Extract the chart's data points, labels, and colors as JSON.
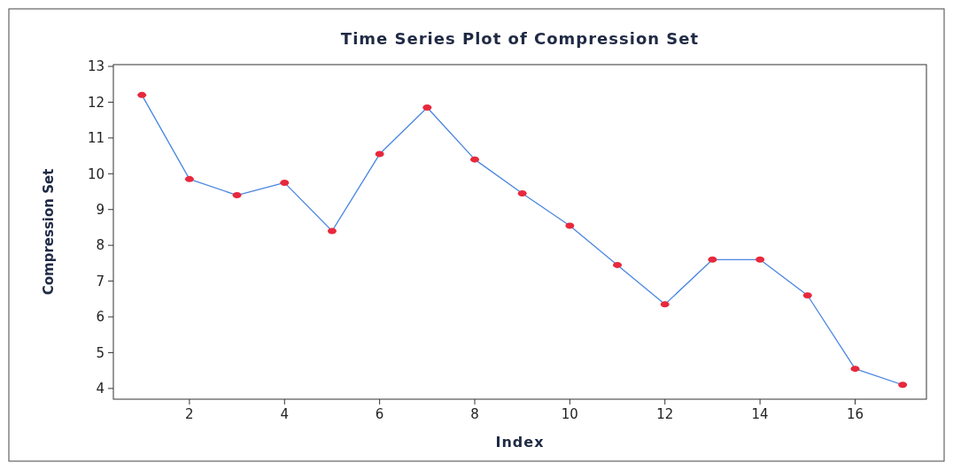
{
  "chart_data": {
    "type": "line",
    "title": "Time Series Plot of Compression Set",
    "xlabel": "Index",
    "ylabel": "Compression Set",
    "x": [
      1,
      2,
      3,
      4,
      5,
      6,
      7,
      8,
      9,
      10,
      11,
      12,
      13,
      14,
      15,
      16,
      17
    ],
    "series": [
      {
        "color": "#4a86e0",
        "values": [
          12.2,
          9.85,
          9.4,
          9.75,
          8.4,
          10.55,
          11.85,
          10.4,
          9.45,
          8.55,
          7.45,
          6.35,
          7.6,
          7.6,
          6.6,
          4.55,
          4.1
        ]
      }
    ],
    "xlim": [
      0.4,
      17.5
    ],
    "xticks": [
      2,
      4,
      6,
      8,
      10,
      12,
      14,
      16
    ],
    "ylim": [
      3.7,
      13.05
    ],
    "yticks": [
      4,
      5,
      6,
      7,
      8,
      9,
      10,
      11,
      12,
      13
    ],
    "marker": "circle",
    "grid": false
  }
}
